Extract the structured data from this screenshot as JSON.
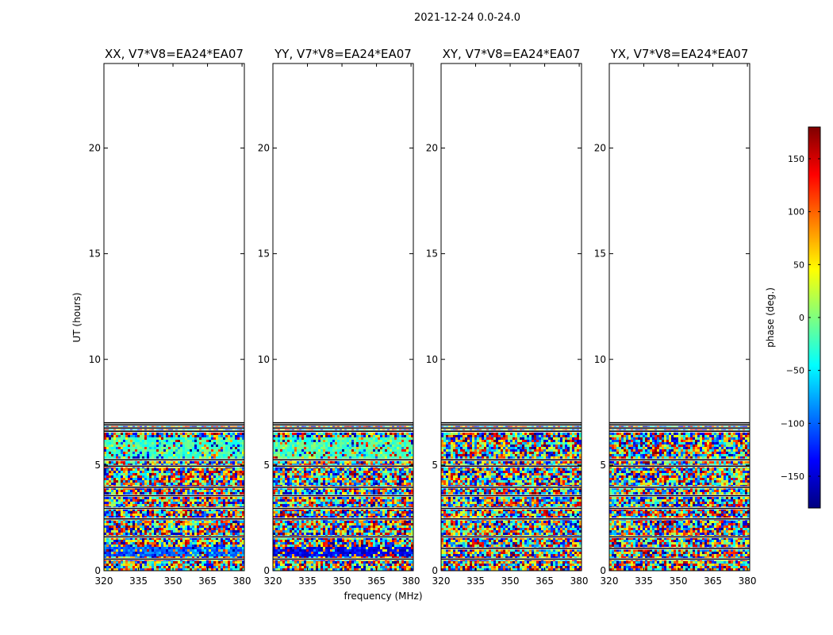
{
  "figure": {
    "suptitle": "2021-12-24 0.0-24.0",
    "xlabel": "frequency (MHz)",
    "ylabel": "UT (hours)"
  },
  "colorbar": {
    "label": "phase (deg.)",
    "min": -180,
    "max": 180,
    "ticks": [
      -150,
      -100,
      -50,
      0,
      50,
      100,
      150
    ],
    "tick_labels": [
      "−150",
      "−100",
      "−50",
      "0",
      "50",
      "100",
      "150"
    ],
    "colormap": [
      "#00007f",
      "#0000ff",
      "#007fff",
      "#00ffff",
      "#7fff7f",
      "#ffff00",
      "#ff7f00",
      "#ff0000",
      "#7f0000"
    ]
  },
  "chart_data": [
    {
      "type": "heatmap",
      "title": "XX, V7*V8=EA24*EA07",
      "xlabel": "frequency (MHz)",
      "ylabel": "UT (hours)",
      "xlim": [
        320,
        381
      ],
      "ylim": [
        0,
        24
      ],
      "xticks": [
        320,
        335,
        350,
        365,
        380
      ],
      "yticks": [
        0,
        5,
        10,
        15,
        20
      ],
      "value": "phase (deg.)",
      "data_extent_hours": [
        0.0,
        7.05
      ],
      "gap_hours": [
        0.55,
        1.6,
        2.45,
        2.95,
        3.55,
        3.95,
        4.95,
        5.25,
        6.6,
        6.75,
        6.9,
        7.0
      ],
      "coherent_bands": [
        {
          "from": 0.75,
          "to": 1.15,
          "phase": -100
        },
        {
          "from": 5.35,
          "to": 6.35,
          "phase": -20
        }
      ]
    },
    {
      "type": "heatmap",
      "title": "YY, V7*V8=EA24*EA07",
      "xlabel": "frequency (MHz)",
      "ylabel": "UT (hours)",
      "xlim": [
        320,
        381
      ],
      "ylim": [
        0,
        24
      ],
      "xticks": [
        320,
        335,
        350,
        365,
        380
      ],
      "yticks": [
        0,
        5,
        10,
        15,
        20
      ],
      "value": "phase (deg.)",
      "data_extent_hours": [
        0.0,
        7.05
      ],
      "gap_hours": [
        0.55,
        1.6,
        2.45,
        2.95,
        3.55,
        3.95,
        4.95,
        5.25,
        6.6,
        6.75,
        6.9,
        7.0
      ],
      "coherent_bands": [
        {
          "from": 0.7,
          "to": 1.2,
          "phase": -140
        },
        {
          "from": 5.35,
          "to": 6.35,
          "phase": -20
        }
      ]
    },
    {
      "type": "heatmap",
      "title": "XY, V7*V8=EA24*EA07",
      "xlabel": "frequency (MHz)",
      "ylabel": "UT (hours)",
      "xlim": [
        320,
        381
      ],
      "ylim": [
        0,
        24
      ],
      "xticks": [
        320,
        335,
        350,
        365,
        380
      ],
      "yticks": [
        0,
        5,
        10,
        15,
        20
      ],
      "value": "phase (deg.)",
      "data_extent_hours": [
        0.0,
        7.05
      ],
      "gap_hours": [
        0.55,
        1.05,
        1.6,
        2.45,
        2.95,
        3.55,
        3.95,
        4.95,
        5.25,
        6.6,
        6.75,
        6.9,
        7.0
      ],
      "coherent_bands": []
    },
    {
      "type": "heatmap",
      "title": "YX, V7*V8=EA24*EA07",
      "xlabel": "frequency (MHz)",
      "ylabel": "UT (hours)",
      "xlim": [
        320,
        381
      ],
      "ylim": [
        0,
        24
      ],
      "xticks": [
        320,
        335,
        350,
        365,
        380
      ],
      "yticks": [
        0,
        5,
        10,
        15,
        20
      ],
      "value": "phase (deg.)",
      "data_extent_hours": [
        0.0,
        7.05
      ],
      "gap_hours": [
        0.55,
        1.05,
        1.6,
        2.45,
        2.95,
        3.55,
        3.95,
        4.95,
        5.25,
        6.6,
        6.75,
        6.9,
        7.0
      ],
      "coherent_bands": []
    }
  ]
}
